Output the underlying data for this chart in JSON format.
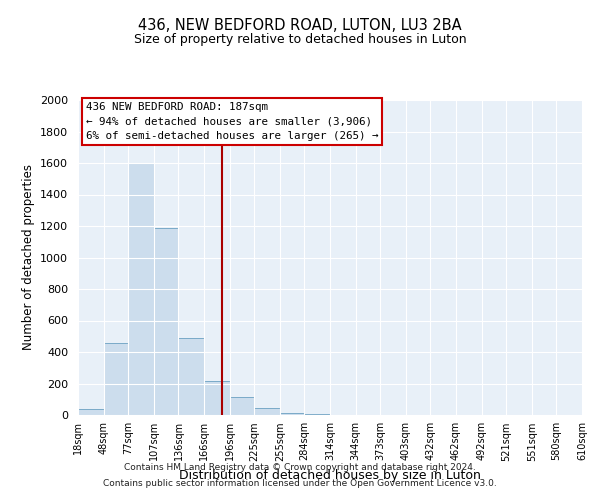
{
  "title": "436, NEW BEDFORD ROAD, LUTON, LU3 2BA",
  "subtitle": "Size of property relative to detached houses in Luton",
  "xlabel": "Distribution of detached houses by size in Luton",
  "ylabel": "Number of detached properties",
  "bar_color": "#ccdded",
  "bar_edge_color": "#7aaac8",
  "background_color": "#e8f0f8",
  "grid_color": "#ffffff",
  "vline_x": 187,
  "vline_color": "#aa0000",
  "bin_edges": [
    18,
    48,
    77,
    107,
    136,
    166,
    196,
    225,
    255,
    284,
    314,
    344,
    373,
    403,
    432,
    462,
    492,
    521,
    551,
    580,
    610
  ],
  "bar_heights": [
    40,
    460,
    1600,
    1190,
    490,
    215,
    115,
    45,
    15,
    5,
    0,
    0,
    0,
    0,
    0,
    0,
    0,
    0,
    0,
    0
  ],
  "annotation_line1": "436 NEW BEDFORD ROAD: 187sqm",
  "annotation_line2": "← 94% of detached houses are smaller (3,906)",
  "annotation_line3": "6% of semi-detached houses are larger (265) →",
  "footer_line1": "Contains HM Land Registry data © Crown copyright and database right 2024.",
  "footer_line2": "Contains public sector information licensed under the Open Government Licence v3.0.",
  "ylim": [
    0,
    2000
  ],
  "yticks": [
    0,
    200,
    400,
    600,
    800,
    1000,
    1200,
    1400,
    1600,
    1800,
    2000
  ],
  "tick_labels": [
    "18sqm",
    "48sqm",
    "77sqm",
    "107sqm",
    "136sqm",
    "166sqm",
    "196sqm",
    "225sqm",
    "255sqm",
    "284sqm",
    "314sqm",
    "344sqm",
    "373sqm",
    "403sqm",
    "432sqm",
    "462sqm",
    "492sqm",
    "521sqm",
    "551sqm",
    "580sqm",
    "610sqm"
  ]
}
